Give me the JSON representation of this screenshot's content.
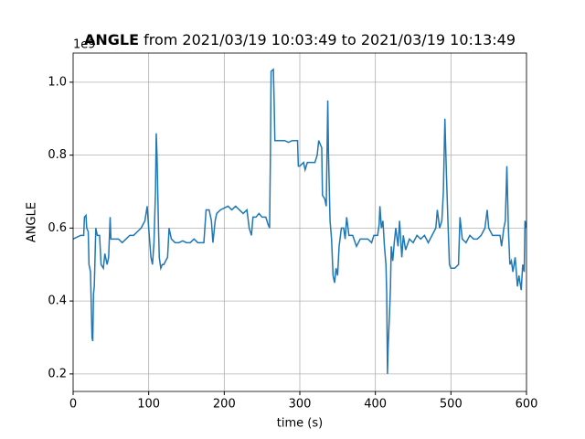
{
  "chart_data": {
    "type": "line",
    "title": {
      "bold": "ANGLE",
      "rest": "from 2021/03/19 10:03:49 to 2021/03/19 10:13:49"
    },
    "offset_text": "1e9",
    "x_label": "time (s)",
    "y_label": "ANGLE",
    "xlim": [
      0,
      600
    ],
    "xticks": [
      0,
      100,
      200,
      300,
      400,
      500,
      600
    ],
    "ylim": [
      0.152,
      1.08
    ],
    "yticks": [
      0.2,
      0.4,
      0.6,
      0.8,
      {
        "value": 1,
        "label": "1.0"
      }
    ],
    "grid": true,
    "x": [
      0,
      5,
      10,
      14,
      15,
      17,
      18,
      20,
      21,
      23,
      25,
      26,
      27,
      28,
      30,
      32,
      35,
      37,
      40,
      42,
      45,
      47,
      49,
      50,
      55,
      60,
      65,
      70,
      75,
      80,
      85,
      90,
      95,
      98,
      100,
      103,
      105,
      107,
      109,
      110,
      111,
      112,
      113,
      114,
      116,
      118,
      120,
      125,
      127,
      130,
      135,
      140,
      145,
      150,
      155,
      160,
      165,
      170,
      173,
      176,
      180,
      183,
      185,
      188,
      190,
      195,
      200,
      205,
      210,
      215,
      220,
      225,
      230,
      233,
      236,
      238,
      242,
      246,
      250,
      255,
      258,
      260,
      261,
      262,
      265,
      266,
      267,
      275,
      280,
      285,
      290,
      295,
      297,
      298,
      300,
      305,
      307,
      310,
      315,
      320,
      323,
      325,
      327,
      329,
      330,
      333,
      335,
      337,
      338,
      340,
      342,
      344,
      346,
      348,
      350,
      352,
      355,
      358,
      360,
      362,
      365,
      370,
      375,
      380,
      385,
      390,
      395,
      398,
      400,
      403,
      405,
      406,
      408,
      410,
      412,
      414,
      415,
      416,
      417,
      419,
      420,
      421,
      423,
      425,
      427,
      430,
      432,
      435,
      437,
      440,
      445,
      450,
      455,
      460,
      465,
      470,
      475,
      480,
      482,
      485,
      488,
      490,
      492,
      494,
      496,
      498,
      500,
      505,
      510,
      512,
      515,
      520,
      525,
      530,
      535,
      540,
      545,
      548,
      550,
      555,
      560,
      565,
      567,
      570,
      572,
      574,
      576,
      578,
      580,
      582,
      585,
      588,
      590,
      593,
      595,
      597,
      598,
      600
    ],
    "series": [
      {
        "color": "#1f77b4",
        "values": [
          0.57,
          0.575,
          0.58,
          0.58,
          0.63,
          0.635,
          0.6,
          0.59,
          0.5,
          0.48,
          0.3,
          0.29,
          0.42,
          0.44,
          0.6,
          0.58,
          0.58,
          0.5,
          0.49,
          0.53,
          0.5,
          0.52,
          0.63,
          0.57,
          0.57,
          0.57,
          0.56,
          0.57,
          0.58,
          0.58,
          0.59,
          0.6,
          0.62,
          0.66,
          0.6,
          0.52,
          0.5,
          0.56,
          0.7,
          0.86,
          0.8,
          0.7,
          0.6,
          0.52,
          0.49,
          0.5,
          0.5,
          0.52,
          0.6,
          0.57,
          0.56,
          0.56,
          0.565,
          0.56,
          0.56,
          0.57,
          0.56,
          0.56,
          0.56,
          0.65,
          0.65,
          0.62,
          0.56,
          0.62,
          0.64,
          0.65,
          0.655,
          0.66,
          0.65,
          0.66,
          0.65,
          0.64,
          0.65,
          0.6,
          0.58,
          0.63,
          0.63,
          0.64,
          0.63,
          0.63,
          0.61,
          0.6,
          0.78,
          1.03,
          1.035,
          0.95,
          0.84,
          0.84,
          0.84,
          0.835,
          0.84,
          0.84,
          0.84,
          0.77,
          0.77,
          0.78,
          0.76,
          0.78,
          0.78,
          0.78,
          0.8,
          0.84,
          0.83,
          0.82,
          0.69,
          0.68,
          0.66,
          0.95,
          0.8,
          0.62,
          0.57,
          0.47,
          0.45,
          0.49,
          0.47,
          0.55,
          0.6,
          0.6,
          0.57,
          0.63,
          0.58,
          0.58,
          0.55,
          0.57,
          0.57,
          0.57,
          0.56,
          0.58,
          0.58,
          0.58,
          0.61,
          0.66,
          0.6,
          0.62,
          0.55,
          0.5,
          0.42,
          0.2,
          0.28,
          0.38,
          0.44,
          0.55,
          0.51,
          0.56,
          0.6,
          0.55,
          0.62,
          0.52,
          0.58,
          0.54,
          0.57,
          0.56,
          0.58,
          0.57,
          0.58,
          0.56,
          0.58,
          0.6,
          0.65,
          0.6,
          0.62,
          0.7,
          0.9,
          0.75,
          0.62,
          0.5,
          0.49,
          0.49,
          0.5,
          0.63,
          0.57,
          0.56,
          0.58,
          0.57,
          0.57,
          0.58,
          0.6,
          0.65,
          0.6,
          0.58,
          0.58,
          0.58,
          0.55,
          0.6,
          0.62,
          0.77,
          0.6,
          0.5,
          0.51,
          0.48,
          0.52,
          0.44,
          0.47,
          0.43,
          0.5,
          0.48,
          0.62,
          0.6
        ]
      }
    ]
  }
}
